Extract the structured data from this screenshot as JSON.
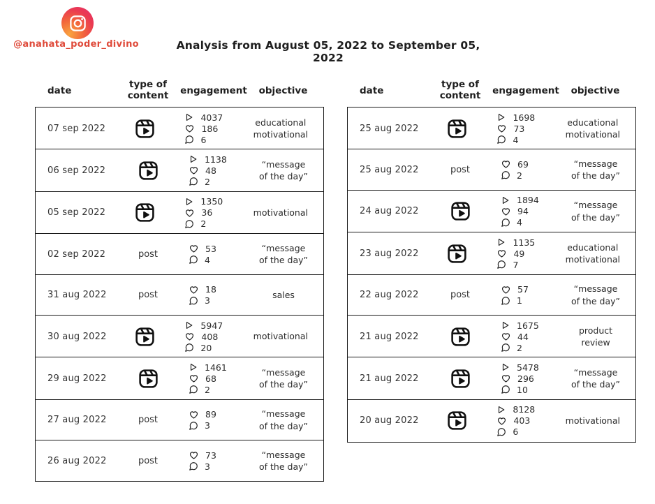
{
  "header": {
    "handle": "@anahata_poder_divino",
    "title": "Analysis from August 05, 2022 to September 05, 2022",
    "logo_icon": "instagram-icon",
    "handle_color": "#df4a3a"
  },
  "table": {
    "columns": [
      "date",
      "type of content",
      "engagement",
      "objective"
    ],
    "post_label": "post",
    "reel_icon": "reel-icon",
    "metric_icons": [
      "play-icon",
      "heart-icon",
      "comment-icon"
    ],
    "left": {
      "rows": [
        {
          "date": "07 sep 2022",
          "type": "reel",
          "plays": "4037",
          "likes": "186",
          "comments": "6",
          "objective": "educational motivational"
        },
        {
          "date": "06 sep 2022",
          "type": "reel",
          "plays": "1138",
          "likes": "48",
          "comments": "2",
          "objective": "“message of the day”"
        },
        {
          "date": "05 sep 2022",
          "type": "reel",
          "plays": "1350",
          "likes": "36",
          "comments": "2",
          "objective": "motivational"
        },
        {
          "date": "02 sep 2022",
          "type": "post",
          "likes": "53",
          "comments": "4",
          "objective": "“message of the day”"
        },
        {
          "date": "31 aug 2022",
          "type": "post",
          "likes": "18",
          "comments": "3",
          "objective": "sales"
        },
        {
          "date": "30 aug 2022",
          "type": "reel",
          "plays": "5947",
          "likes": "408",
          "comments": "20",
          "objective": "motivational"
        },
        {
          "date": "29 aug 2022",
          "type": "reel",
          "plays": "1461",
          "likes": "68",
          "comments": "2",
          "objective": "“message of the day”"
        },
        {
          "date": "27 aug 2022",
          "type": "post",
          "likes": "89",
          "comments": "3",
          "objective": "“message of the day”"
        },
        {
          "date": "26 aug 2022",
          "type": "post",
          "likes": "73",
          "comments": "3",
          "objective": "“message of the day”"
        }
      ]
    },
    "right": {
      "rows": [
        {
          "date": "25 aug 2022",
          "type": "reel",
          "plays": "1698",
          "likes": "73",
          "comments": "4",
          "objective": "educational motivational"
        },
        {
          "date": "25 aug 2022",
          "type": "post",
          "likes": "69",
          "comments": "2",
          "objective": "“message of the day”"
        },
        {
          "date": "24 aug 2022",
          "type": "reel",
          "plays": "1894",
          "likes": "94",
          "comments": "4",
          "objective": "“message of the day”"
        },
        {
          "date": "23 aug 2022",
          "type": "reel",
          "plays": "1135",
          "likes": "49",
          "comments": "7",
          "objective": "educational motivational"
        },
        {
          "date": "22 aug 2022",
          "type": "post",
          "likes": "57",
          "comments": "1",
          "objective": "“message of the day”"
        },
        {
          "date": "21 aug 2022",
          "type": "reel",
          "plays": "1675",
          "likes": "44",
          "comments": "2",
          "objective": "product review"
        },
        {
          "date": "21 aug 2022",
          "type": "reel",
          "plays": "5478",
          "likes": "296",
          "comments": "10",
          "objective": "“message of the day”"
        },
        {
          "date": "20 aug 2022",
          "type": "reel",
          "plays": "8128",
          "likes": "403",
          "comments": "6",
          "objective": "motivational"
        }
      ]
    }
  },
  "colors": {
    "accent": "#df4a3a",
    "border": "#1a1a1a",
    "text": "#2d2d2d"
  }
}
